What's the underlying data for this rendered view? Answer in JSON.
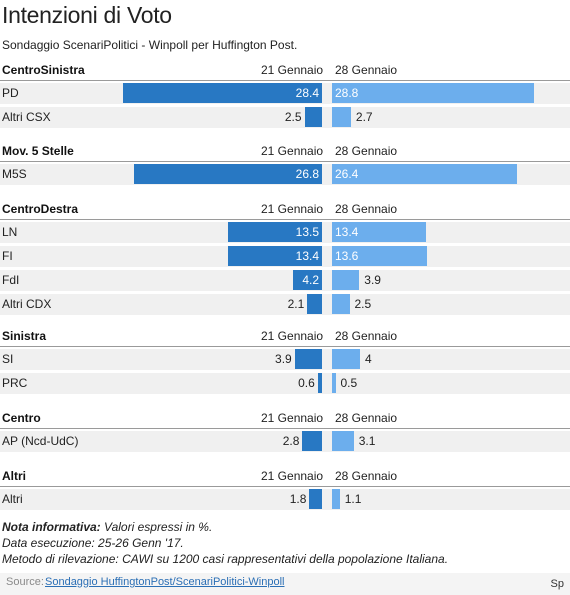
{
  "title": "Intenzioni di Voto",
  "subtitle": "Sondaggio ScenariPolitici - Winpoll per Huffington Post.",
  "colors": {
    "left_bar": "#2878c3",
    "right_bar": "#6caeed",
    "row_background": "#f0f0f0",
    "link": "#2b6fb5"
  },
  "chart_data": {
    "type": "bar",
    "orientation": "horizontal-butterfly",
    "series": [
      {
        "name": "21 Gennaio"
      },
      {
        "name": "28 Gennaio"
      }
    ],
    "groups": [
      {
        "name": "CentroSinistra",
        "left_header": "21 Gennaio",
        "right_header": "28 Gennaio",
        "rows": [
          {
            "label": "PD",
            "left": 28.4,
            "right": 28.8
          },
          {
            "label": "Altri CSX",
            "left": 2.5,
            "right": 2.7
          }
        ]
      },
      {
        "name": "Mov. 5 Stelle",
        "left_header": "21 Gennaio",
        "right_header": "28 Gennaio",
        "rows": [
          {
            "label": "M5S",
            "left": 26.8,
            "right": 26.4
          }
        ]
      },
      {
        "name": "CentroDestra",
        "left_header": "21 Gennaio",
        "right_header": "28 Gennaio",
        "rows": [
          {
            "label": "LN",
            "left": 13.5,
            "right": 13.4
          },
          {
            "label": "FI",
            "left": 13.4,
            "right": 13.6
          },
          {
            "label": "FdI",
            "left": 4.2,
            "right": 3.9
          },
          {
            "label": "Altri CDX",
            "left": 2.1,
            "right": 2.5
          }
        ]
      },
      {
        "name": "Sinistra",
        "left_header": "21 Gennaio",
        "right_header": "28 Gennaio",
        "rows": [
          {
            "label": "SI",
            "left": 3.9,
            "right": 4.0
          },
          {
            "label": "PRC",
            "left": 0.6,
            "right": 0.5
          }
        ]
      },
      {
        "name": "Centro",
        "left_header": "21 Gennaio",
        "right_header": "28 Gennaio",
        "rows": [
          {
            "label": "AP (Ncd-UdC)",
            "left": 2.8,
            "right": 3.1
          }
        ]
      },
      {
        "name": "Altri",
        "left_header": "21 Gennaio",
        "right_header": "28 Gennaio",
        "rows": [
          {
            "label": "Altri",
            "left": 1.8,
            "right": 1.1
          }
        ]
      }
    ]
  },
  "notes": {
    "note_label": "Nota informativa:",
    "note_text": " Valori espressi in %.",
    "line2": "Data esecuzione: 25-26 Genn '17.",
    "line3": "Metodo di rilevazione: CAWI su 1200 casi rappresentativi della popolazione Italiana."
  },
  "footer": {
    "source_label": "Source:",
    "source_link": "Sondaggio HuffingtonPost/ScenariPolitici-Winpoll",
    "corner_text": "Sp"
  }
}
